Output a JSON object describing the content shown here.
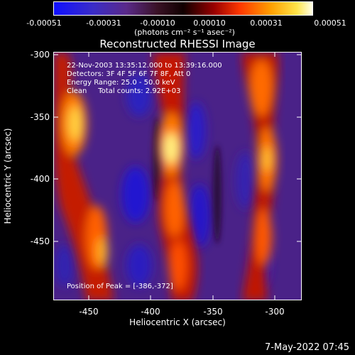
{
  "colorbar": {
    "tick_labels": [
      "-0.00051",
      "-0.00031",
      "-0.00010",
      "0.00010",
      "0.00031",
      "0.00051"
    ],
    "units_label": "(photons cm⁻² s⁻¹ asec⁻²)"
  },
  "plot": {
    "title": "Reconstructed RHESSI Image",
    "annotations": {
      "time": "22-Nov-2003 13:35:12.000 to 13:39:16.000",
      "detectors": "Detectors: 3F 4F 5F 6F 7F 8F, Att 0",
      "energy": "Energy Range: 25.0 - 50.0 keV",
      "method": "Clean     Total counts: 2.92E+03",
      "peak": "Position of Peak = [-386,-372]"
    }
  },
  "axes": {
    "xlabel": "Heliocentric X (arcsec)",
    "ylabel": "Heliocentric Y (arcsec)",
    "x_ticks": [
      "-450",
      "-400",
      "-350",
      "-300"
    ],
    "y_ticks": [
      "-300",
      "-350",
      "-400",
      "-450"
    ]
  },
  "footer": {
    "timestamp": "7-May-2022 07:45"
  },
  "colors": {
    "background": "#000000",
    "text": "#ffffff"
  }
}
